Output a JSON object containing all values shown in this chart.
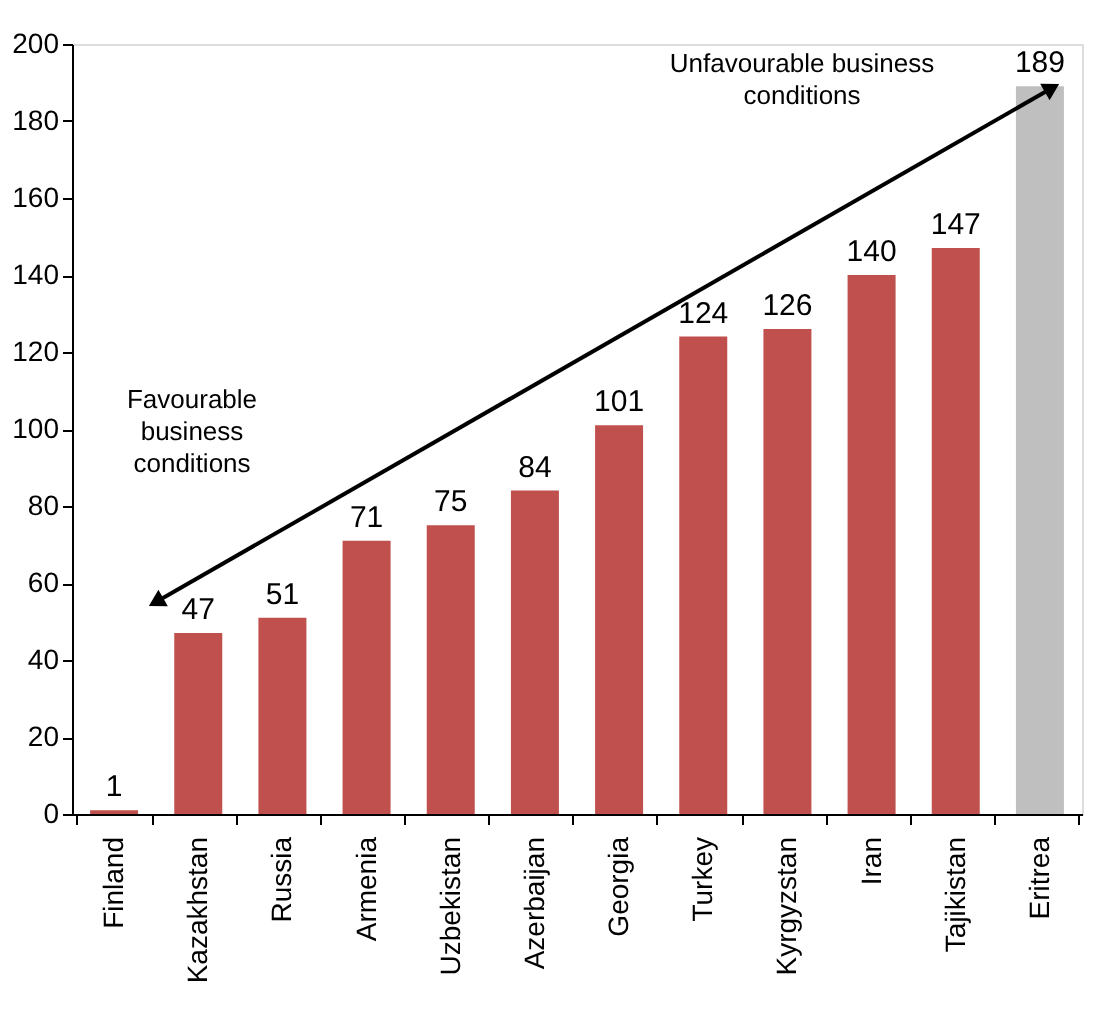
{
  "chart_data": {
    "type": "bar",
    "categories": [
      "Finland",
      "Kazakhstan",
      "Russia",
      "Armenia",
      "Uzbekistan",
      "Azerbaijan",
      "Georgia",
      "Turkey",
      "Kyrgyzstan",
      "Iran",
      "Tajikistan",
      "Eritrea"
    ],
    "values": [
      1,
      47,
      51,
      71,
      75,
      84,
      101,
      124,
      126,
      140,
      147,
      189
    ],
    "colors": [
      "#c0504d",
      "#c0504d",
      "#c0504d",
      "#c0504d",
      "#c0504d",
      "#c0504d",
      "#c0504d",
      "#c0504d",
      "#c0504d",
      "#c0504d",
      "#c0504d",
      "#bfbfbf"
    ],
    "ylim": [
      0,
      200
    ],
    "yticks": [
      0,
      20,
      40,
      60,
      80,
      100,
      120,
      140,
      160,
      180,
      200
    ],
    "grid": false,
    "data_labels": true,
    "annotations": [
      "Unfavourable business conditions",
      "Favourable business conditions"
    ]
  }
}
